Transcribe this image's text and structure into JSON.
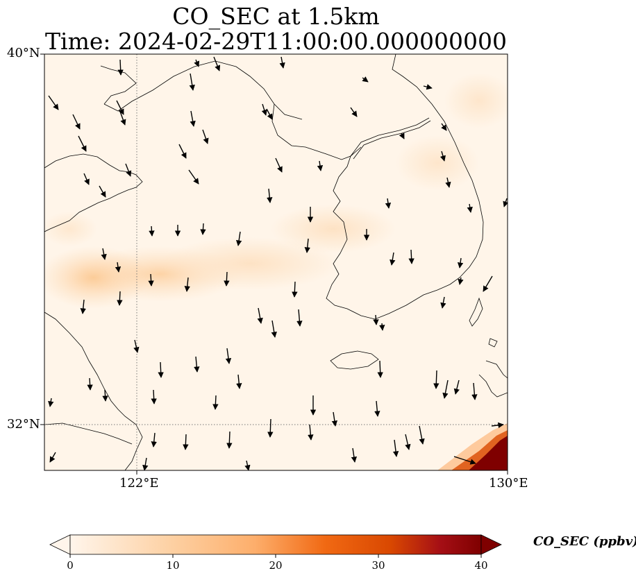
{
  "title": {
    "line1": "CO_SEC at 1.5km",
    "line2": "Time: 2024-02-29T11:00:00.000000000"
  },
  "map": {
    "lat_labels": [
      "40°N",
      "32°N"
    ],
    "lon_labels": [
      "122°E",
      "130°E"
    ],
    "gridlines": {
      "style": "dotted",
      "color": "#777777"
    },
    "background_color": "#fff5e9",
    "coastline_color": "#000000",
    "wind_arrow_color": "#000000",
    "plume_color": "#fdd2a2",
    "hotspot_color": "#7f0000"
  },
  "colorbar": {
    "label": "CO_SEC (ppbv)",
    "ticks": [
      "0",
      "10",
      "20",
      "30",
      "40"
    ],
    "range": [
      0,
      40
    ],
    "colors": [
      "#fff5eb",
      "#fdd0a2",
      "#fdae6b",
      "#f16913",
      "#d94801",
      "#a50f15",
      "#7f0000"
    ],
    "extend": "both"
  }
}
